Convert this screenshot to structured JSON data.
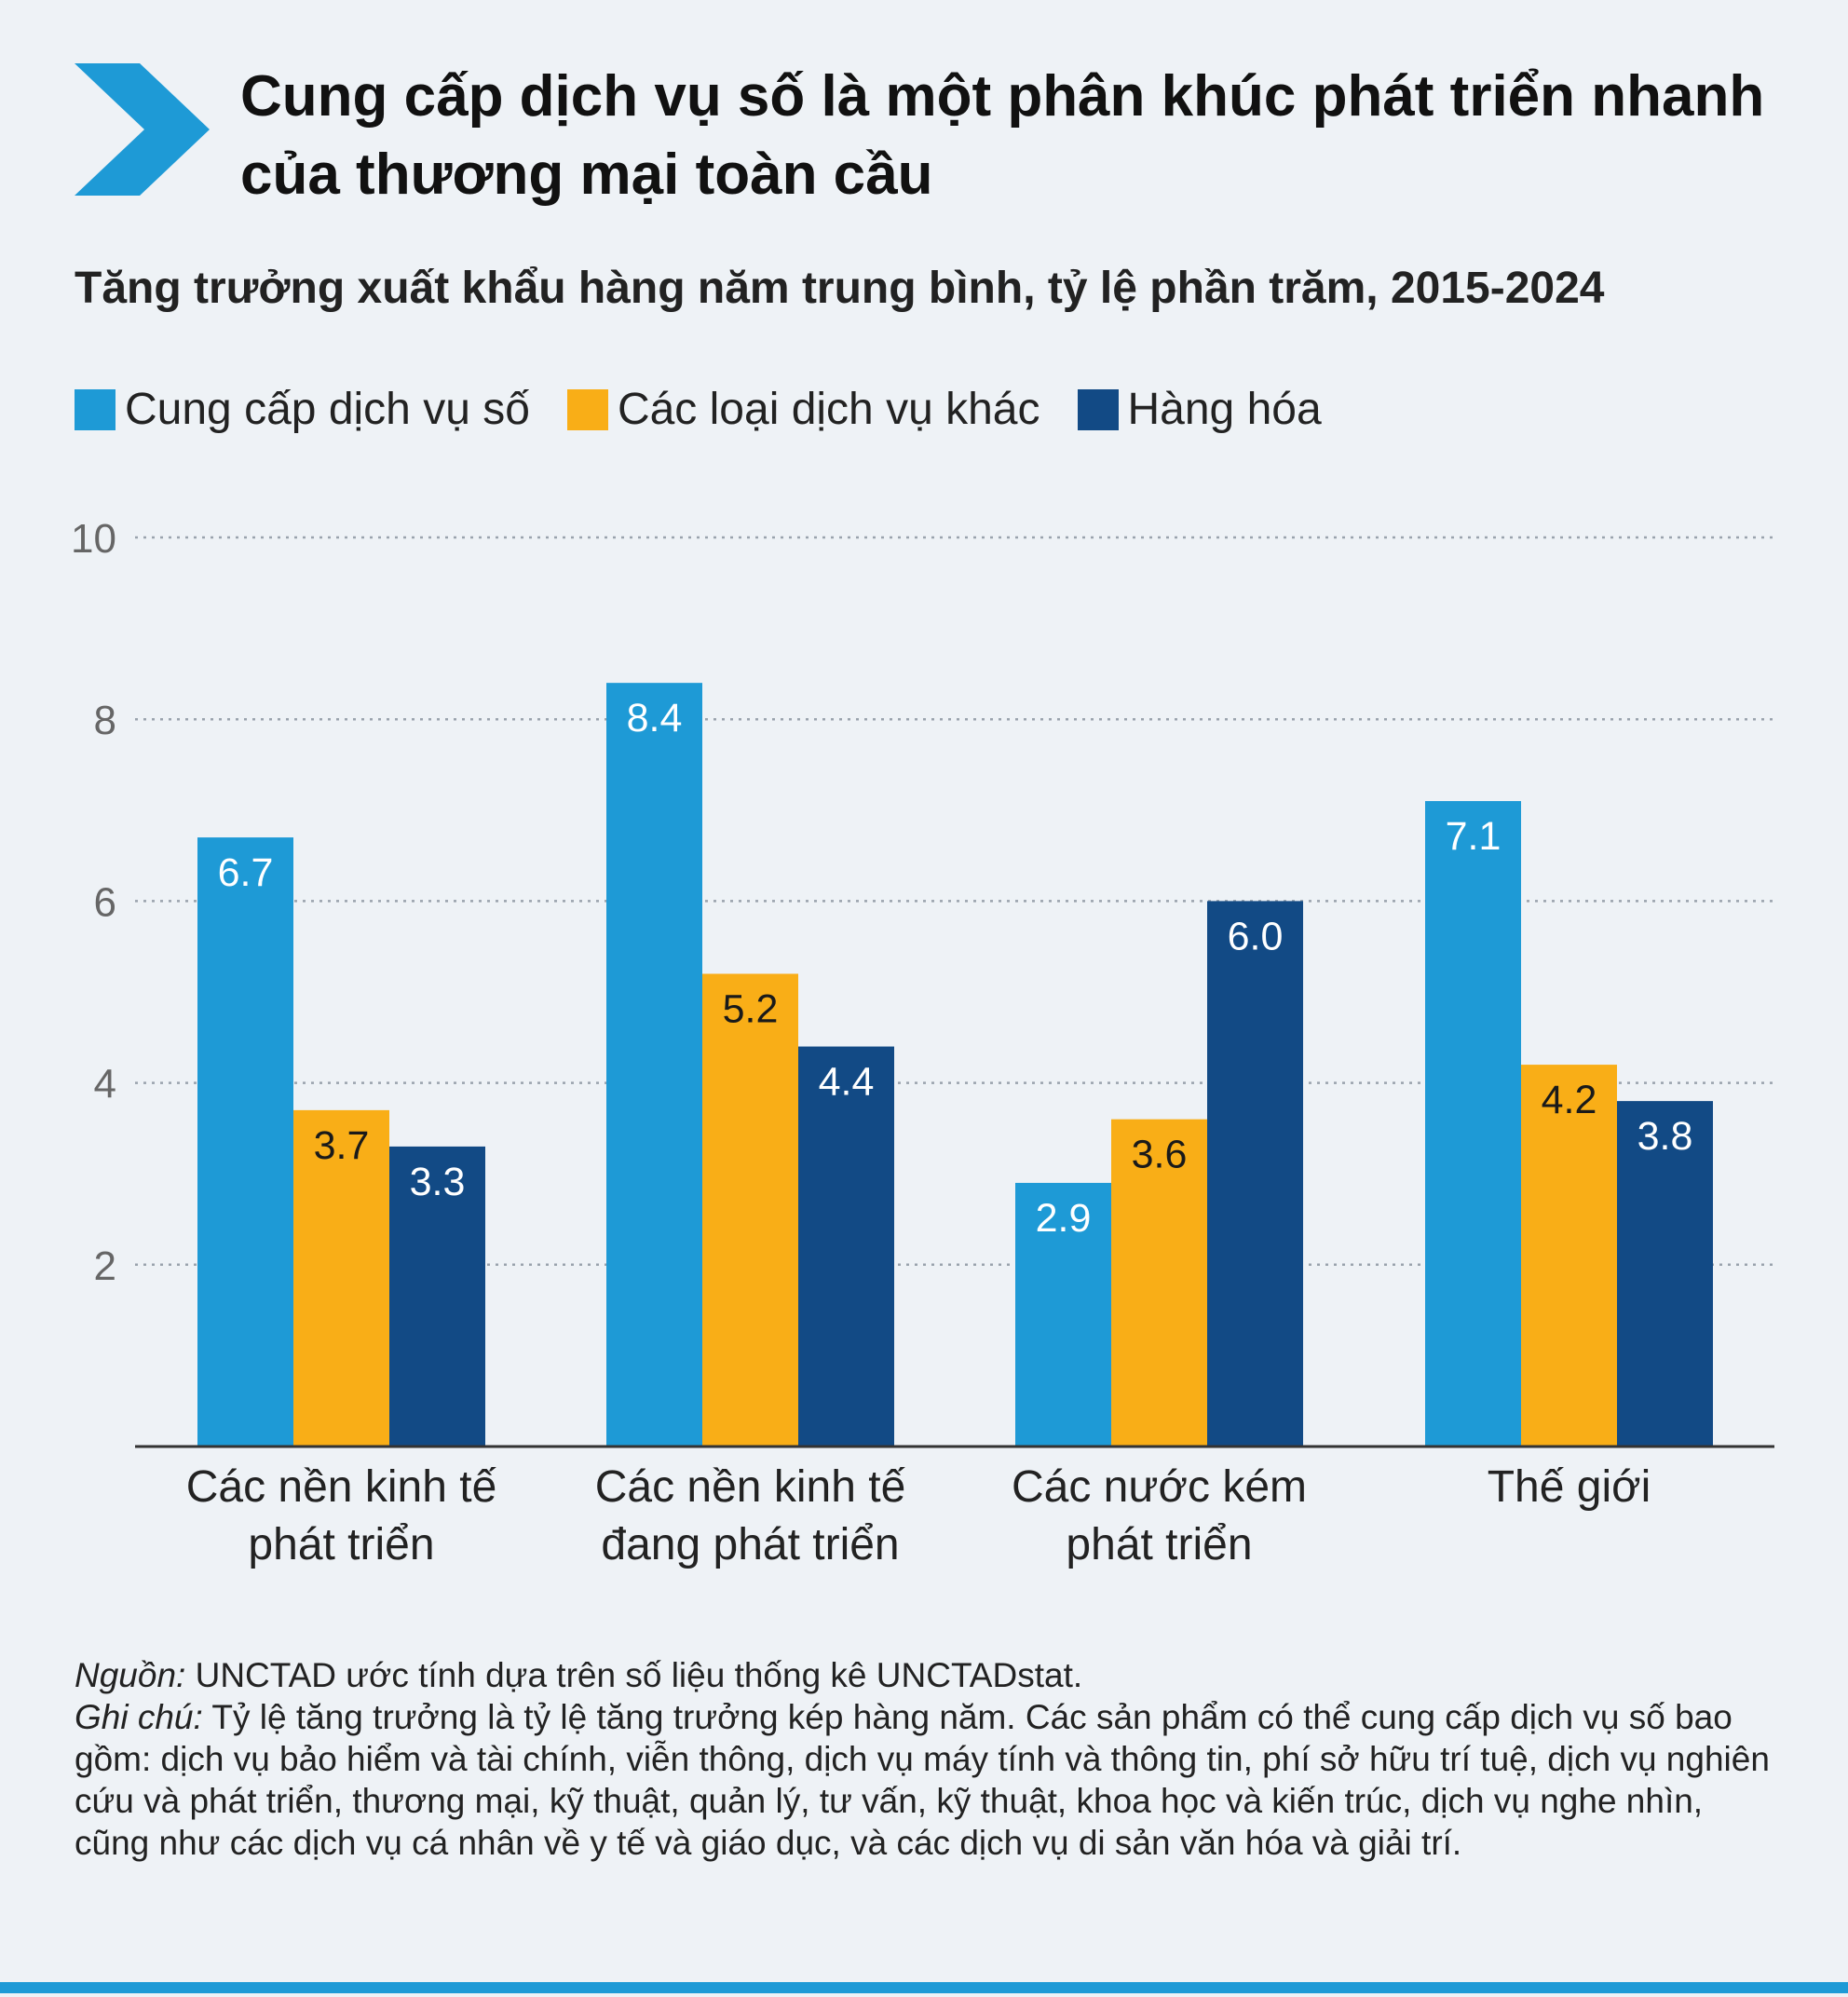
{
  "header": {
    "title": "Cung cấp dịch vụ số là một phân khúc phát triển nhanh của thương mại toàn cầu",
    "subtitle": "Tăng trưởng xuất khẩu hàng năm trung bình, tỷ lệ phần trăm, 2015-2024"
  },
  "chart_data": {
    "type": "bar",
    "title": "",
    "xlabel": "",
    "ylabel": "",
    "ylim": [
      0,
      10
    ],
    "yticks": [
      "2",
      "4",
      "6",
      "8",
      "10"
    ],
    "grid": true,
    "legend_position": "top-left",
    "categories": [
      {
        "line1": "Các nền kinh tế",
        "line2": "phát triển"
      },
      {
        "line1": "Các nền kinh tế",
        "line2": "đang phát triển"
      },
      {
        "line1": "Các nước kém",
        "line2": "phát triển"
      },
      {
        "line1": "Thế giới",
        "line2": ""
      }
    ],
    "series": [
      {
        "name": "Cung cấp dịch vụ số",
        "color": "#1e9ad6",
        "label_color": "#ffffff",
        "values": [
          6.7,
          8.4,
          2.9,
          7.1
        ]
      },
      {
        "name": "Các loại dịch vụ khác",
        "color": "#f9ae17",
        "label_color": "#1a1a1a",
        "values": [
          3.7,
          5.2,
          3.6,
          4.2
        ]
      },
      {
        "name": "Hàng hóa",
        "color": "#124a85",
        "label_color": "#ffffff",
        "values": [
          3.3,
          4.4,
          6.0,
          3.8
        ]
      }
    ]
  },
  "notes": {
    "source_label": "Nguồn:",
    "source_text": " UNCTAD ước tính dựa trên số liệu thống kê UNCTADstat.",
    "note_label": "Ghi chú:",
    "note_text": " Tỷ lệ tăng trưởng là tỷ lệ tăng trưởng kép hàng năm. Các sản phẩm có thể cung cấp dịch vụ số bao gồm: dịch vụ bảo hiểm và tài chính, viễn thông, dịch vụ máy tính và thông tin, phí sở hữu trí tuệ, dịch vụ nghiên cứu và phát triển, thương mại, kỹ thuật, quản lý, tư vấn, kỹ thuật, khoa học và kiến trúc, dịch vụ nghe nhìn, cũng như các dịch vụ cá nhân về y tế và giáo dục, và các dịch vụ di sản văn hóa và giải trí."
  }
}
